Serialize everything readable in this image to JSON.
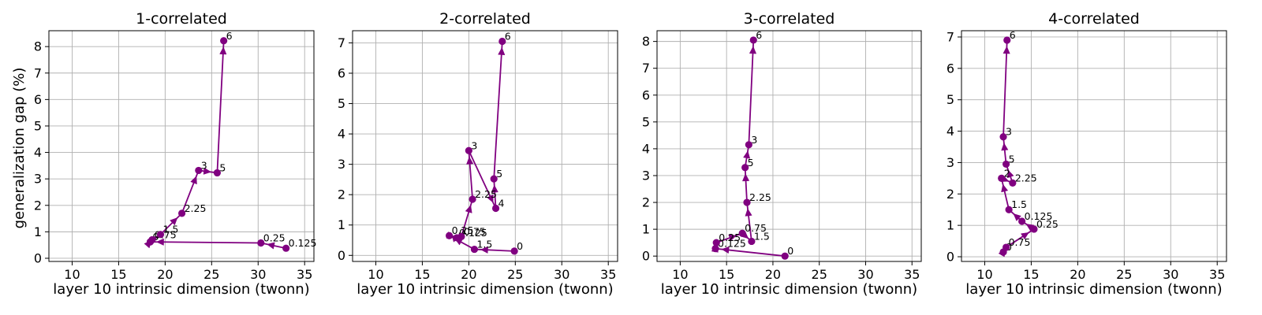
{
  "ylabel": "generalization gap (%)",
  "color": "#800080",
  "chart_data": [
    {
      "type": "line",
      "title": "1-correlated",
      "xlabel": "layer 10 intrinsic dimension (twonn)",
      "xlim": [
        7.5,
        36
      ],
      "ylim": [
        -0.12,
        8.6
      ],
      "xticks": [
        10,
        15,
        20,
        25,
        30,
        35
      ],
      "yticks": [
        0,
        1,
        2,
        3,
        4,
        5,
        6,
        7,
        8
      ],
      "grid": true,
      "points": [
        {
          "label": "0.125",
          "x": 33.0,
          "y": 0.38
        },
        {
          "label": "0.25",
          "x": 30.3,
          "y": 0.58
        },
        {
          "label": "0",
          "x": 18.4,
          "y": 0.62
        },
        {
          "label": "0.75",
          "x": 18.6,
          "y": 0.7
        },
        {
          "label": "1.5",
          "x": 19.5,
          "y": 0.9
        },
        {
          "label": "2.25",
          "x": 21.8,
          "y": 1.7
        },
        {
          "label": "3",
          "x": 23.6,
          "y": 3.32
        },
        {
          "label": "5",
          "x": 25.6,
          "y": 3.23
        },
        {
          "label": "6",
          "x": 26.3,
          "y": 8.22
        }
      ]
    },
    {
      "type": "line",
      "title": "2-correlated",
      "xlabel": "layer 10 intrinsic dimension (twonn)",
      "xlim": [
        7.5,
        36
      ],
      "ylim": [
        -0.2,
        7.4
      ],
      "xticks": [
        10,
        15,
        20,
        25,
        30,
        35
      ],
      "yticks": [
        0,
        1,
        2,
        3,
        4,
        5,
        6,
        7
      ],
      "grid": true,
      "points": [
        {
          "label": "0",
          "x": 24.9,
          "y": 0.14
        },
        {
          "label": "1.5",
          "x": 20.6,
          "y": 0.2
        },
        {
          "label": "0.25",
          "x": 17.9,
          "y": 0.65
        },
        {
          "label": "0.125",
          "x": 18.7,
          "y": 0.58
        },
        {
          "label": "0.75",
          "x": 19.2,
          "y": 0.62
        },
        {
          "label": "2.25",
          "x": 20.4,
          "y": 1.85
        },
        {
          "label": "3",
          "x": 20.0,
          "y": 3.45
        },
        {
          "label": "4",
          "x": 22.9,
          "y": 1.55
        },
        {
          "label": "5",
          "x": 22.7,
          "y": 2.52
        },
        {
          "label": "6",
          "x": 23.6,
          "y": 7.05
        }
      ]
    },
    {
      "type": "line",
      "title": "3-correlated",
      "xlabel": "layer 10 intrinsic dimension (twonn)",
      "xlim": [
        7.5,
        36
      ],
      "ylim": [
        -0.2,
        8.4
      ],
      "xticks": [
        10,
        15,
        20,
        25,
        30,
        35
      ],
      "yticks": [
        0,
        1,
        2,
        3,
        4,
        5,
        6,
        7,
        8
      ],
      "grid": true,
      "points": [
        {
          "label": "0",
          "x": 21.3,
          "y": 0.0
        },
        {
          "label": "0.125",
          "x": 13.8,
          "y": 0.28
        },
        {
          "label": "0.25",
          "x": 13.9,
          "y": 0.5
        },
        {
          "label": "0.75",
          "x": 16.7,
          "y": 0.85
        },
        {
          "label": "1.5",
          "x": 17.7,
          "y": 0.55
        },
        {
          "label": "2.25",
          "x": 17.2,
          "y": 2.0
        },
        {
          "label": "5",
          "x": 17.0,
          "y": 3.3
        },
        {
          "label": "3",
          "x": 17.4,
          "y": 4.15
        },
        {
          "label": "6",
          "x": 17.9,
          "y": 8.05
        }
      ]
    },
    {
      "type": "line",
      "title": "4-correlated",
      "xlabel": "layer 10 intrinsic dimension (twonn)",
      "xlim": [
        7.5,
        36
      ],
      "ylim": [
        -0.15,
        7.2
      ],
      "xticks": [
        10,
        15,
        20,
        25,
        30,
        35
      ],
      "yticks": [
        0,
        1,
        2,
        3,
        4,
        5,
        6,
        7
      ],
      "grid": true,
      "points": [
        {
          "label": "0",
          "x": 12.0,
          "y": 0.15
        },
        {
          "label": "0.75",
          "x": 12.3,
          "y": 0.3
        },
        {
          "label": "0.25",
          "x": 15.3,
          "y": 0.88
        },
        {
          "label": "0.125",
          "x": 14.0,
          "y": 1.13
        },
        {
          "label": "1.5",
          "x": 12.6,
          "y": 1.5
        },
        {
          "label": "2",
          "x": 11.8,
          "y": 2.5
        },
        {
          "label": "2.25",
          "x": 13.0,
          "y": 2.35
        },
        {
          "label": "5",
          "x": 12.3,
          "y": 2.95
        },
        {
          "label": "3",
          "x": 12.0,
          "y": 3.82
        },
        {
          "label": "6",
          "x": 12.4,
          "y": 6.9
        }
      ]
    }
  ]
}
